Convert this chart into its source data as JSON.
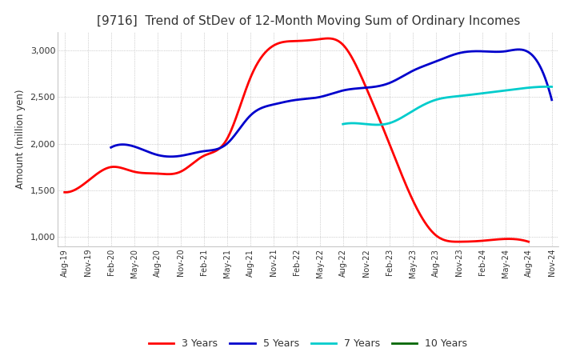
{
  "title": "[9716]  Trend of StDev of 12-Month Moving Sum of Ordinary Incomes",
  "ylabel": "Amount (million yen)",
  "ylim": [
    900,
    3200
  ],
  "yticks": [
    1000,
    1500,
    2000,
    2500,
    3000
  ],
  "background_color": "#ffffff",
  "plot_background": "#ffffff",
  "grid_color": "#aaaaaa",
  "line_colors": {
    "3y": "#ff0000",
    "5y": "#0000cc",
    "7y": "#00cccc",
    "10y": "#006600"
  },
  "legend_labels": [
    "3 Years",
    "5 Years",
    "7 Years",
    "10 Years"
  ],
  "x_labels": [
    "Aug-19",
    "Nov-19",
    "Feb-20",
    "May-20",
    "Aug-20",
    "Nov-20",
    "Feb-21",
    "May-21",
    "Aug-21",
    "Nov-21",
    "Feb-22",
    "May-22",
    "Aug-22",
    "Nov-22",
    "Feb-23",
    "May-23",
    "Aug-23",
    "Nov-23",
    "Feb-24",
    "May-24",
    "Aug-24",
    "Nov-24"
  ],
  "y_3y": [
    1480,
    1600,
    1750,
    1700,
    1680,
    1700,
    1870,
    2050,
    2700,
    3050,
    3100,
    3120,
    3060,
    2600,
    2000,
    1400,
    1020,
    950,
    960,
    980,
    950,
    null
  ],
  "y_5y": [
    null,
    null,
    1960,
    1970,
    1880,
    1870,
    1920,
    2000,
    2300,
    2420,
    2470,
    2500,
    2570,
    2600,
    2650,
    2780,
    2880,
    2970,
    2990,
    2990,
    2980,
    2470
  ],
  "y_7y": [
    null,
    null,
    null,
    null,
    null,
    null,
    null,
    null,
    null,
    null,
    null,
    null,
    2210,
    2210,
    2220,
    2350,
    2470,
    2510,
    2540,
    2570,
    2600,
    2610
  ],
  "y_10y": [
    null,
    null,
    null,
    null,
    null,
    null,
    null,
    null,
    null,
    null,
    null,
    null,
    null,
    null,
    null,
    null,
    null,
    null,
    null,
    null,
    null,
    null
  ]
}
